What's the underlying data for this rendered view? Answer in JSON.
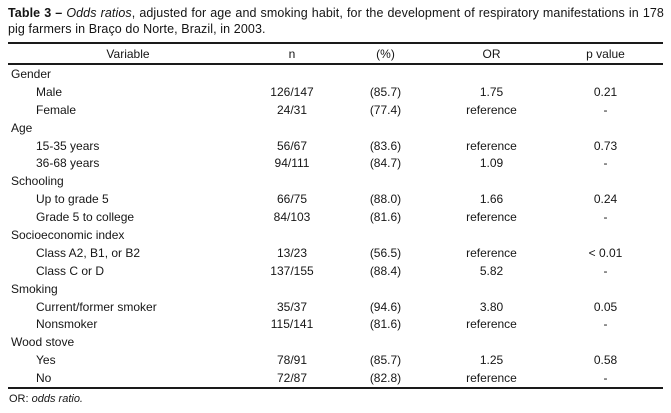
{
  "title": {
    "bold": "Table 3 –",
    "italic": "Odds ratios",
    "rest": ", adjusted for age and smoking habit, for the development of respiratory manifestations in 178 pig farmers in Braço do Norte, Brazil, in 2003."
  },
  "columns": [
    "Variable",
    "n",
    "(%)",
    "OR",
    "p value"
  ],
  "rows": [
    {
      "type": "category",
      "variable": "Gender",
      "n": "",
      "pct": "",
      "or_value": "",
      "p": ""
    },
    {
      "type": "item",
      "variable": "Male",
      "n": "126/147",
      "pct": "(85.7)",
      "or_value": "1.75",
      "p": "0.21"
    },
    {
      "type": "item",
      "variable": "Female",
      "n": "24/31",
      "pct": "(77.4)",
      "or_value": "reference",
      "p": "-"
    },
    {
      "type": "category",
      "variable": "Age",
      "n": "",
      "pct": "",
      "or_value": "",
      "p": ""
    },
    {
      "type": "item",
      "variable": "15-35 years",
      "n": "56/67",
      "pct": "(83.6)",
      "or_value": "reference",
      "p": "0.73"
    },
    {
      "type": "item",
      "variable": "36-68 years",
      "n": "94/111",
      "pct": "(84.7)",
      "or_value": "1.09",
      "p": "-"
    },
    {
      "type": "category",
      "variable": "Schooling",
      "n": "",
      "pct": "",
      "or_value": "",
      "p": ""
    },
    {
      "type": "item",
      "variable": "Up to grade 5",
      "n": "66/75",
      "pct": "(88.0)",
      "or_value": "1.66",
      "p": "0.24"
    },
    {
      "type": "item",
      "variable": "Grade 5 to college",
      "n": "84/103",
      "pct": "(81.6)",
      "or_value": "reference",
      "p": "-"
    },
    {
      "type": "category",
      "variable": "Socioeconomic index",
      "n": "",
      "pct": "",
      "or_value": "",
      "p": ""
    },
    {
      "type": "item",
      "variable": "Class A2, B1, or B2",
      "n": "13/23",
      "pct": "(56.5)",
      "or_value": "reference",
      "p": "< 0.01"
    },
    {
      "type": "item",
      "variable": "Class C or D",
      "n": "137/155",
      "pct": "(88.4)",
      "or_value": "5.82",
      "p": "-"
    },
    {
      "type": "category",
      "variable": "Smoking",
      "n": "",
      "pct": "",
      "or_value": "",
      "p": ""
    },
    {
      "type": "item",
      "variable": "Current/former smoker",
      "n": "35/37",
      "pct": "(94.6)",
      "or_value": "3.80",
      "p": "0.05"
    },
    {
      "type": "item",
      "variable": "Nonsmoker",
      "n": "115/141",
      "pct": "(81.6)",
      "or_value": "reference",
      "p": "-"
    },
    {
      "type": "category",
      "variable": "Wood stove",
      "n": "",
      "pct": "",
      "or_value": "",
      "p": ""
    },
    {
      "type": "item",
      "variable": "Yes",
      "n": "78/91",
      "pct": "(85.7)",
      "or_value": "1.25",
      "p": "0.58"
    },
    {
      "type": "item",
      "variable": "No",
      "n": "72/87",
      "pct": "(82.8)",
      "or_value": "reference",
      "p": "-"
    }
  ],
  "footnote": {
    "abbr": "OR:",
    "definition": "odds ratio."
  },
  "colors": {
    "text": "#161616",
    "rule": "#1a1a1a",
    "background": "#ffffff"
  }
}
